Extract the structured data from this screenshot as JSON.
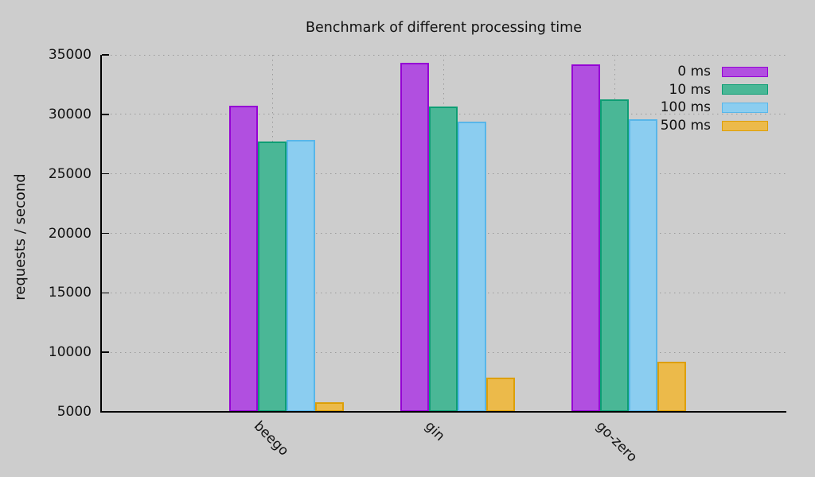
{
  "colors": {
    "background": "#cdcdcd",
    "grid": "#9a9a9a",
    "axis": "#000000",
    "text": "#111111"
  },
  "chart_data": {
    "type": "bar",
    "title": "Benchmark of different processing time",
    "xlabel": "",
    "ylabel": "requests / second",
    "categories": [
      "beego",
      "gin",
      "go-zero"
    ],
    "series": [
      {
        "name": "0 ms",
        "fill": "#b14fe0",
        "border": "#9503d4",
        "values": [
          30700,
          34300,
          34200
        ]
      },
      {
        "name": "10 ms",
        "fill": "#4ab796",
        "border": "#0d9e74",
        "values": [
          27700,
          30650,
          31250
        ]
      },
      {
        "name": "100 ms",
        "fill": "#8bcdf0",
        "border": "#58b6e9",
        "values": [
          27850,
          29400,
          29600
        ]
      },
      {
        "name": "500 ms",
        "fill": "#ecba4a",
        "border": "#dd9f07",
        "values": [
          5800,
          7900,
          9200
        ]
      }
    ],
    "ylim": [
      5000,
      35000
    ],
    "ytick_step": 5000,
    "ytick_labels": [
      "5000",
      "10000",
      "15000",
      "20000",
      "25000",
      "30000",
      "35000"
    ],
    "grid": true,
    "legend_position": "top-right"
  }
}
